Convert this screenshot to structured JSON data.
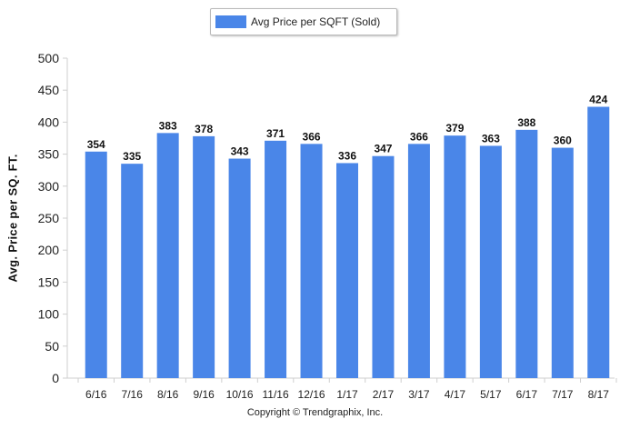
{
  "chart_data": {
    "type": "bar",
    "categories": [
      "6/16",
      "7/16",
      "8/16",
      "9/16",
      "10/16",
      "11/16",
      "12/16",
      "1/17",
      "2/17",
      "3/17",
      "4/17",
      "5/17",
      "6/17",
      "7/17",
      "8/17"
    ],
    "series": [
      {
        "name": "Avg Price per SQFT (Sold)",
        "values": [
          354,
          335,
          383,
          378,
          343,
          371,
          366,
          336,
          347,
          366,
          379,
          363,
          388,
          360,
          424
        ]
      }
    ],
    "ylabel": "Avg. Price per SQ. FT.",
    "xlabel": "",
    "ylim": [
      0,
      500
    ],
    "yticks": [
      0,
      50,
      100,
      150,
      200,
      250,
      300,
      350,
      400,
      450,
      500
    ],
    "grid": false,
    "legend": "top-center",
    "data_labels": true
  },
  "colors": {
    "bar": "#4a86e8",
    "axis": "#cfcfcf",
    "text": "#222222"
  },
  "legend": {
    "label": "Avg Price per SQFT (Sold)"
  },
  "footer": {
    "copyright": "Copyright © Trendgraphix, Inc."
  }
}
